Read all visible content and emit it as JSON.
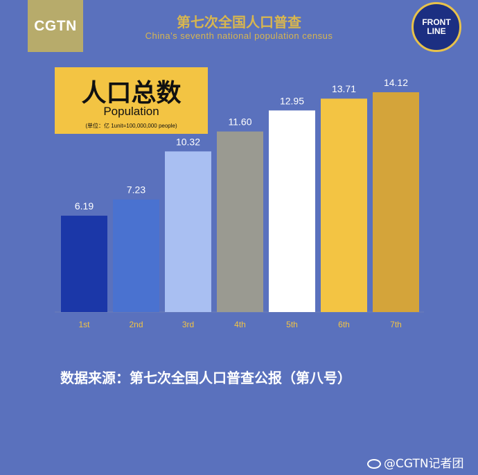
{
  "header": {
    "brand_left": "CGTN",
    "title_cn": "第七次全国人口普查",
    "title_en": "China’s seventh national population census",
    "brand_right": "FRONT\nLINE"
  },
  "chart_data": {
    "type": "bar",
    "title": "人口总数",
    "subtitle": "Population",
    "unit_note": "(单位：亿 1unit=100,000,000 people)",
    "categories": [
      "1st",
      "2nd",
      "3rd",
      "4th",
      "5th",
      "6th",
      "7th"
    ],
    "values": [
      6.19,
      7.23,
      10.32,
      11.6,
      12.95,
      13.71,
      14.12
    ],
    "value_labels": [
      "6.19",
      "7.23",
      "10.32",
      "11.60",
      "12.95",
      "13.71",
      "14.12"
    ],
    "colors": [
      "#1b37a8",
      "#4a72d0",
      "#a9bff2",
      "#9a9a91",
      "#ffffff",
      "#f3c443",
      "#d4a43a"
    ],
    "ylim": [
      0,
      16.26
    ],
    "grid": false,
    "legend": "none"
  },
  "source": "数据来源：第七次全国人口普查公报（第八号）",
  "watermark": "@CGTN记者团"
}
